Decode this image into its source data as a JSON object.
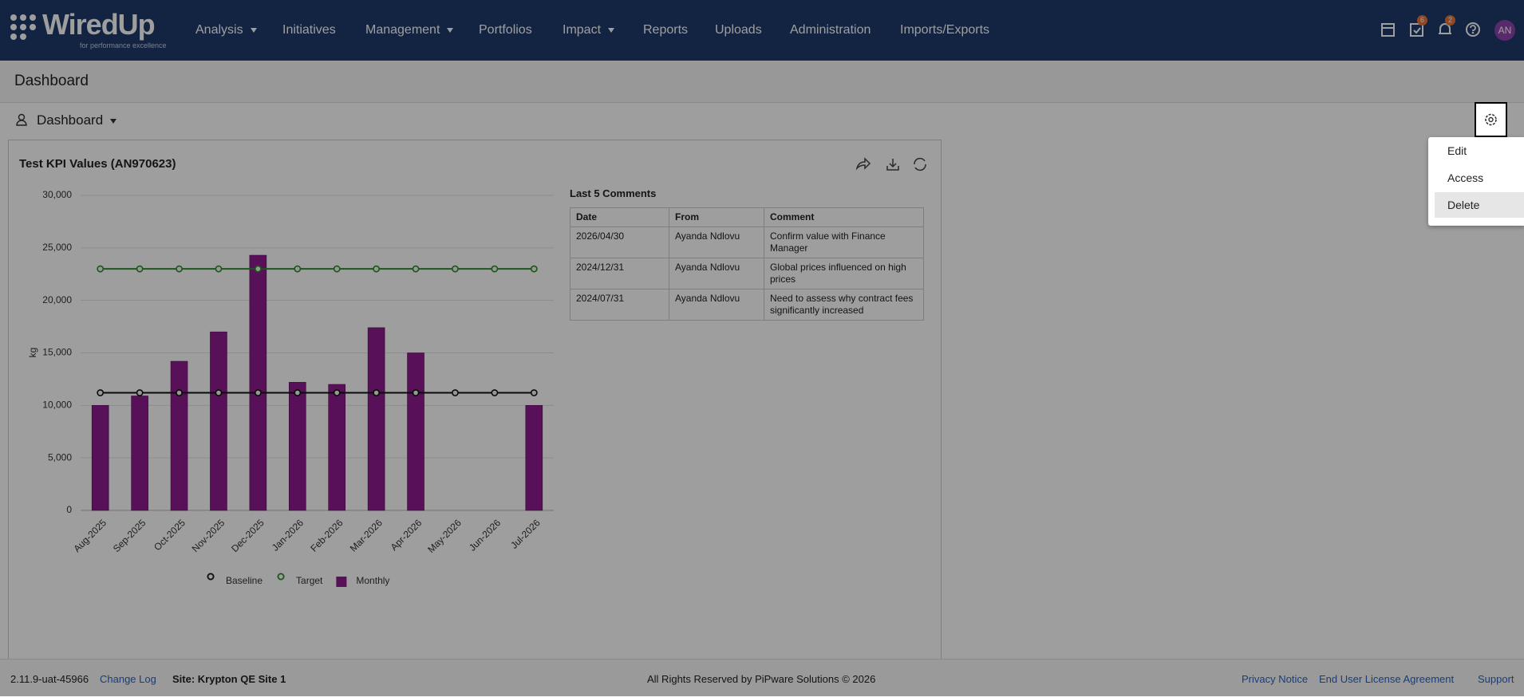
{
  "nav": {
    "logo": "WiredUp",
    "tagline": "for performance excellence",
    "items": [
      "Analysis",
      "Initiatives",
      "Management",
      "Portfolios",
      "Impact",
      "Reports",
      "Uploads",
      "Administration",
      "Imports/Exports"
    ],
    "task_badge": 6,
    "notification_badge": 2,
    "avatar": "AN"
  },
  "page_title": "Dashboard",
  "dashboard_selector": "Dashboard",
  "menu": [
    "Edit",
    "Access",
    "Delete"
  ],
  "widget_title": "Test KPI Values (AN970623)",
  "comments": {
    "title": "Last 5 Comments",
    "columns": [
      "Date",
      "From",
      "Comment"
    ],
    "rows": [
      [
        "2026/04/30",
        "Ayanda Ndlovu",
        "Confirm value with Finance Manager"
      ],
      [
        "2024/12/31",
        "Ayanda Ndlovu",
        "Global prices influenced on high prices"
      ],
      [
        "2024/07/31",
        "Ayanda Ndlovu",
        "Need to assess why contract fees significantly increased"
      ]
    ]
  },
  "chart_data": {
    "type": "combo",
    "y_label": "kg",
    "categories": [
      "Aug-2025",
      "Sep-2025",
      "Oct-2025",
      "Nov-2025",
      "Dec-2025",
      "Jan-2026",
      "Feb-2026",
      "Mar-2026",
      "Apr-2026",
      "May-2026",
      "Jun-2026",
      "Jul-2026"
    ],
    "series": [
      {
        "name": "Baseline",
        "type": "line",
        "color": "#111111",
        "values": [
          11200,
          11200,
          11200,
          11200,
          11200,
          11200,
          11200,
          11200,
          11200,
          11200,
          11200,
          11200
        ]
      },
      {
        "name": "Target",
        "type": "line",
        "color": "#2e8b2e",
        "values": [
          23000,
          23000,
          23000,
          23000,
          23000,
          23000,
          23000,
          23000,
          23000,
          23000,
          23000,
          23000
        ]
      },
      {
        "name": "Monthly",
        "type": "bar",
        "color": "#8e1a8e",
        "values": [
          10000,
          10900,
          14200,
          17000,
          24300,
          12200,
          12000,
          17400,
          15000,
          null,
          null,
          10000
        ]
      }
    ],
    "ylim": [
      0,
      30000
    ],
    "yticks": [
      0,
      {
        "value": 5000,
        "label": "5,000"
      },
      {
        "value": 10000,
        "label": "10,000"
      },
      {
        "value": 15000,
        "label": "15,000"
      },
      {
        "value": 20000,
        "label": "20,000"
      },
      {
        "value": 25000,
        "label": "25,000"
      },
      {
        "value": 30000,
        "label": "30,000"
      }
    ],
    "grid": true
  },
  "footer": {
    "version": "2.11.9-uat-45966",
    "changelog": "Change Log",
    "site": "Site: Krypton QE Site 1",
    "copyright": "All Rights Reserved by PiPware Solutions © 2026",
    "privacy": "Privacy Notice",
    "eula": "End User License Agreement",
    "support": "Support"
  }
}
